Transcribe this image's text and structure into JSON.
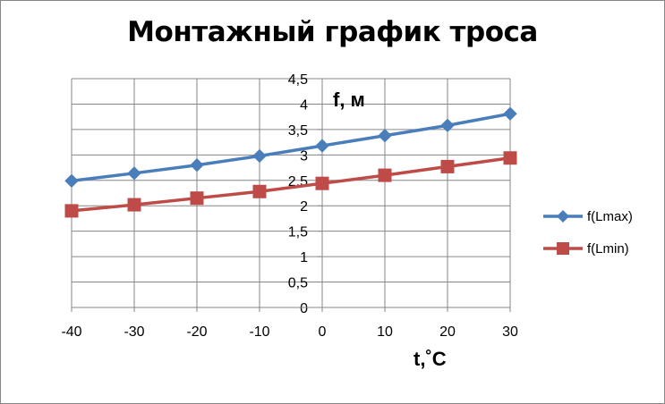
{
  "chart_data": {
    "type": "line",
    "title": "Монтажный график троса",
    "xlabel": "t,˚C",
    "ylabel": "f, м",
    "x": [
      -40,
      -30,
      -20,
      -10,
      0,
      10,
      20,
      30
    ],
    "x_tick_labels": [
      "-40",
      "-30",
      "-20",
      "-10",
      "0",
      "10",
      "20",
      "30"
    ],
    "ylim": [
      0,
      4.5
    ],
    "y_tick_labels": [
      "0",
      "0,5",
      "1",
      "1,5",
      "2",
      "2,5",
      "3",
      "3,5",
      "4",
      "4,5"
    ],
    "y_ticks": [
      0,
      0.5,
      1,
      1.5,
      2,
      2.5,
      3,
      3.5,
      4,
      4.5
    ],
    "grid": true,
    "legend": "right",
    "series": [
      {
        "name": "f(Lmax)",
        "color": "#4a7ebb",
        "marker": "diamond",
        "values": [
          2.49,
          2.64,
          2.8,
          2.98,
          3.18,
          3.38,
          3.58,
          3.81
        ]
      },
      {
        "name": "f(Lmin)",
        "color": "#be4b48",
        "marker": "square",
        "values": [
          1.9,
          2.02,
          2.15,
          2.28,
          2.44,
          2.6,
          2.77,
          2.94
        ]
      }
    ]
  }
}
